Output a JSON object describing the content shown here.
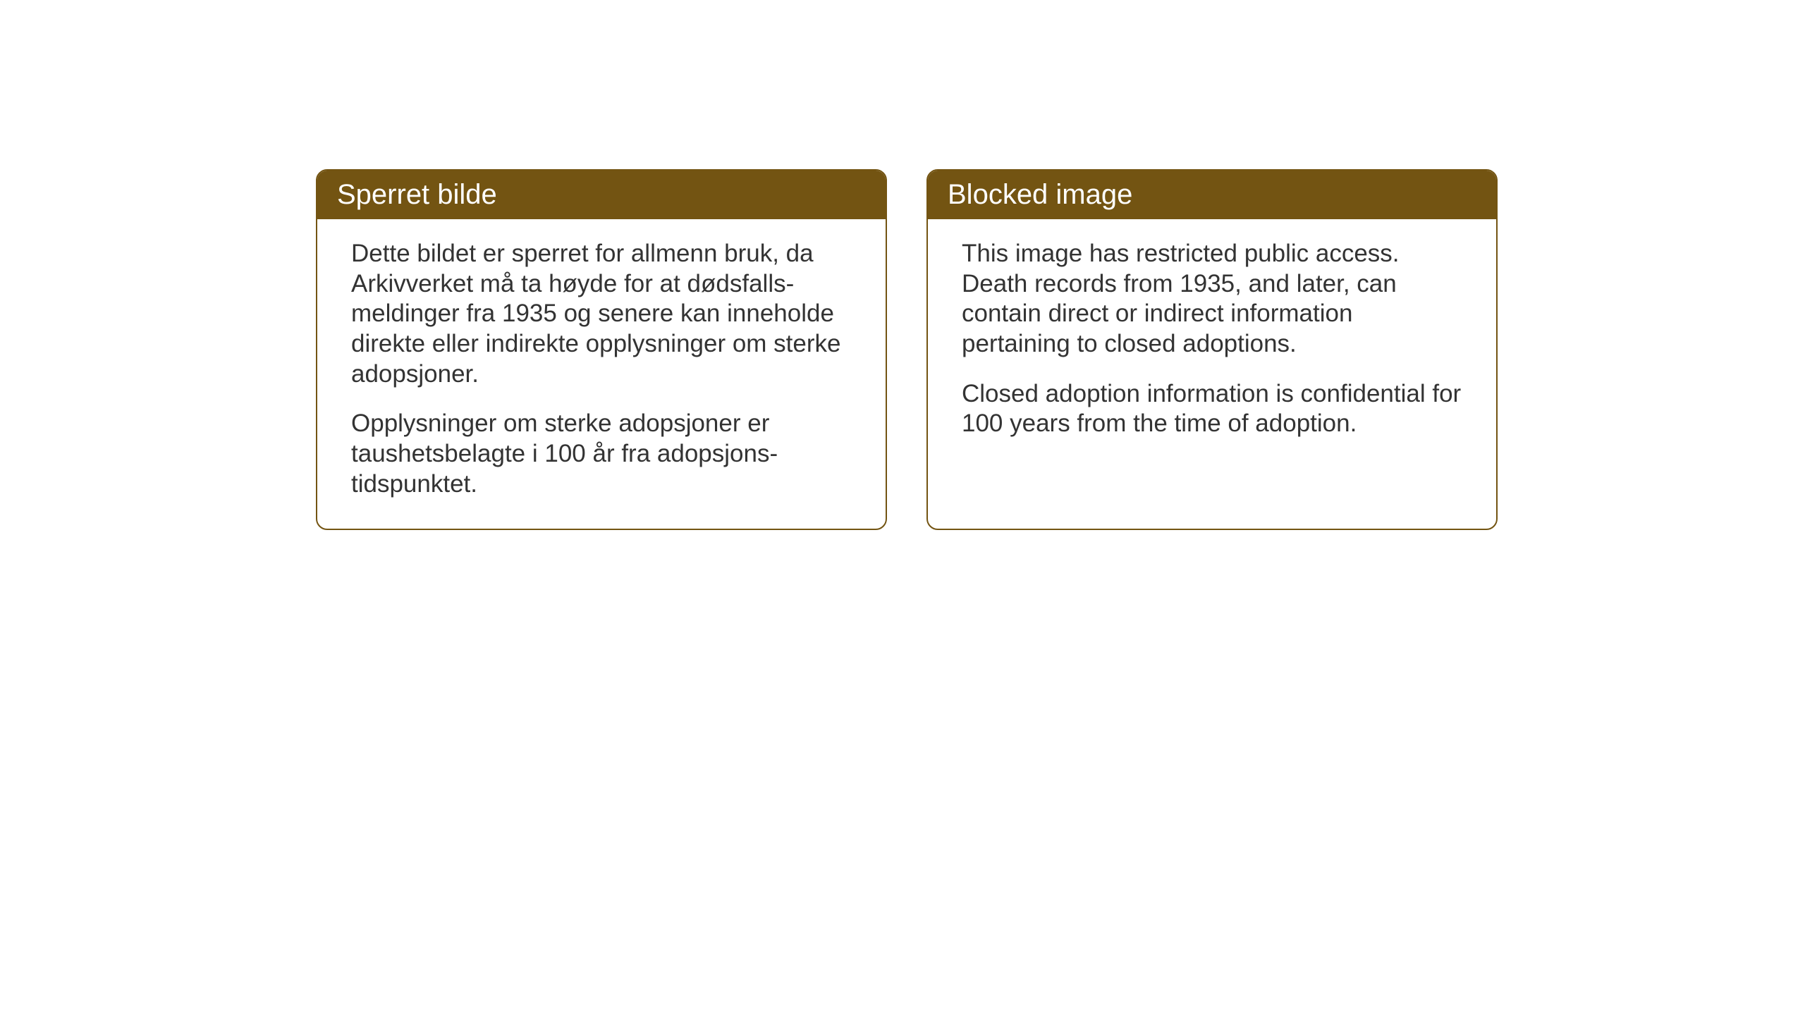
{
  "cards": {
    "left": {
      "title": "Sperret bilde",
      "paragraph1": "Dette bildet er sperret for allmenn bruk, da Arkivverket må ta høyde for at dødsfalls-meldinger fra 1935 og senere kan inneholde direkte eller indirekte opplysninger om sterke adopsjoner.",
      "paragraph2": "Opplysninger om sterke adopsjoner er taushetsbelagte i 100 år fra adopsjons-tidspunktet."
    },
    "right": {
      "title": "Blocked image",
      "paragraph1": "This image has restricted public access. Death records from 1935, and later, can contain direct or indirect information pertaining to closed adoptions.",
      "paragraph2": "Closed adoption information is confidential for 100 years from the time of adoption."
    }
  },
  "styling": {
    "background_color": "#ffffff",
    "card_border_color": "#735412",
    "card_header_bg_color": "#735412",
    "card_header_text_color": "#ffffff",
    "body_text_color": "#333333",
    "card_border_radius": 16,
    "header_font_size": 40,
    "body_font_size": 35
  }
}
